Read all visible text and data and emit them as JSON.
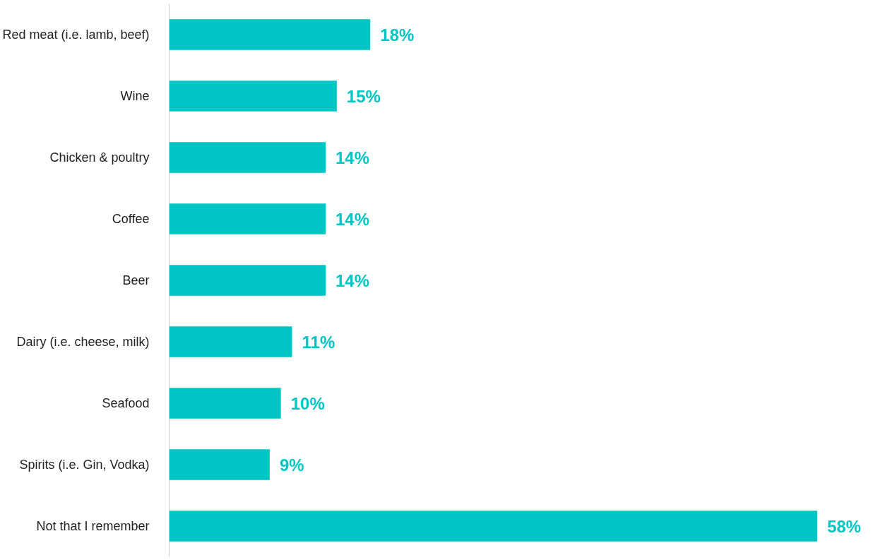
{
  "chart_data": {
    "type": "bar",
    "orientation": "horizontal",
    "categories": [
      "Red meat (i.e. lamb, beef)",
      "Wine",
      "Chicken & poultry",
      "Coffee",
      "Beer",
      "Dairy (i.e. cheese, milk)",
      "Seafood",
      "Spirits (i.e. Gin, Vodka)",
      "Not that I remember"
    ],
    "values": [
      18,
      15,
      14,
      14,
      14,
      11,
      10,
      9,
      58
    ],
    "value_labels": [
      "18%",
      "15%",
      "14%",
      "14%",
      "14%",
      "11%",
      "10%",
      "9%",
      "58%"
    ],
    "color": "#00c5c5",
    "grid": false,
    "tick_labels": "y"
  }
}
